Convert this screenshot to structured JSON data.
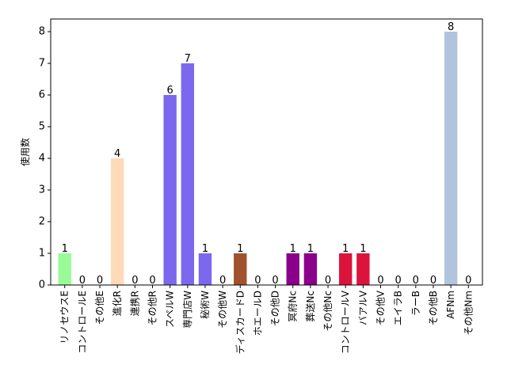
{
  "chart_data": {
    "type": "bar",
    "title": "",
    "xlabel": "",
    "ylabel": "使用数",
    "ylim": [
      0,
      8.4
    ],
    "yticks": [
      0,
      1,
      2,
      3,
      4,
      5,
      6,
      7,
      8
    ],
    "grid": false,
    "categories": [
      "リノセウスE",
      "コントロールE",
      "その他E",
      "進化R",
      "連携R",
      "その他R",
      "スペルW",
      "専門店W",
      "秘術W",
      "その他W",
      "ディスカードD",
      "ホエールD",
      "その他D",
      "冥府Nc",
      "葬送Nc",
      "その他Nc",
      "コントロールV",
      "バアルV",
      "その他V",
      "エイラB",
      "ラーB",
      "その他B",
      "AFNm",
      "その他Nm"
    ],
    "values": [
      1,
      0,
      0,
      4,
      0,
      0,
      6,
      7,
      1,
      0,
      1,
      0,
      0,
      1,
      1,
      0,
      1,
      1,
      0,
      0,
      0,
      0,
      8,
      0
    ],
    "colors": [
      "#98fb98",
      "#98fb98",
      "#98fb98",
      "#ffdab9",
      "#ffdab9",
      "#ffdab9",
      "#7b68ee",
      "#7b68ee",
      "#7b68ee",
      "#7b68ee",
      "#a0522d",
      "#a0522d",
      "#a0522d",
      "#8b008b",
      "#8b008b",
      "#8b008b",
      "#dc143c",
      "#dc143c",
      "#dc143c",
      "#f0e68c",
      "#f0e68c",
      "#f0e68c",
      "#b0c4de",
      "#b0c4de"
    ]
  }
}
